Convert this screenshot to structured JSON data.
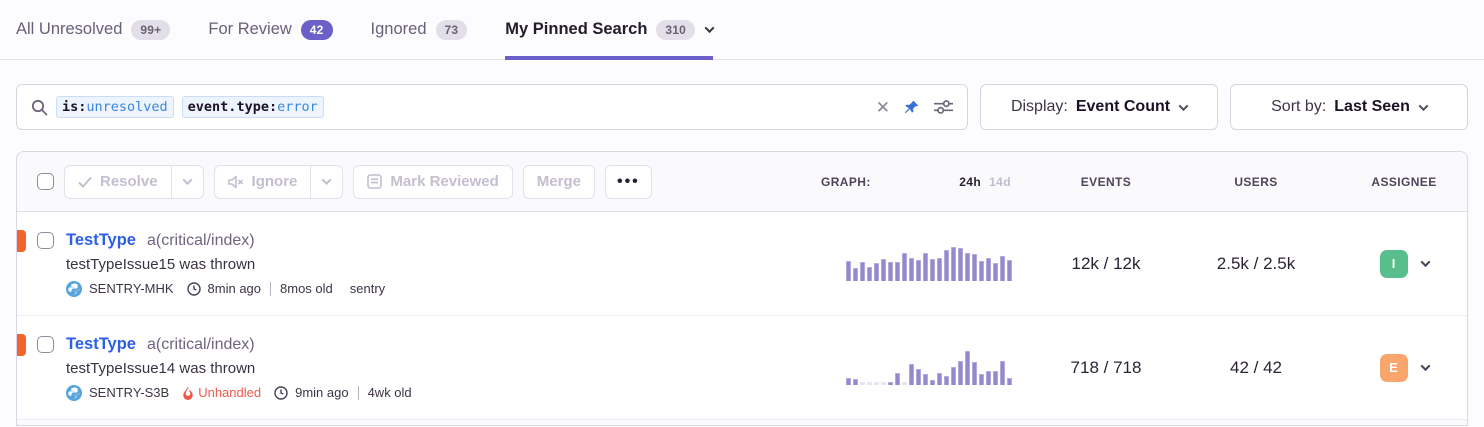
{
  "tabs": [
    {
      "label": "All Unresolved",
      "badge": "99+",
      "badge_style": "gray",
      "active": false
    },
    {
      "label": "For Review",
      "badge": "42",
      "badge_style": "purple",
      "active": false
    },
    {
      "label": "Ignored",
      "badge": "73",
      "badge_style": "gray",
      "active": false
    },
    {
      "label": "My Pinned Search",
      "badge": "310",
      "badge_style": "gray",
      "active": true
    }
  ],
  "search": {
    "tokens": [
      {
        "key": "is:",
        "value": "unresolved"
      },
      {
        "key": "event.type:",
        "value": "error"
      }
    ],
    "clear_label": "✕"
  },
  "display_button": {
    "prefix": "Display:",
    "value": "Event Count"
  },
  "sort_button": {
    "prefix": "Sort by:",
    "value": "Last Seen"
  },
  "toolbar": {
    "resolve": "Resolve",
    "ignore": "Ignore",
    "mark_reviewed": "Mark Reviewed",
    "merge": "Merge",
    "more": "•••"
  },
  "table_header": {
    "graph_label": "GRAPH:",
    "range_24h": "24h",
    "range_14d": "14d",
    "events": "EVENTS",
    "users": "USERS",
    "assignee": "ASSIGNEE"
  },
  "rows": [
    {
      "title": "TestType",
      "culprit": "a(critical/index)",
      "message": "testTypeIssue15 was thrown",
      "short_id": "SENTRY-MHK",
      "time_ago": "8min ago",
      "age": "8mos old",
      "annotation": "sentry",
      "events": "12k / 12k",
      "users": "2.5k / 2.5k",
      "assignee_initial": "I",
      "assignee_color": "#57BE8C",
      "sparkline": [
        0.59,
        0.37,
        0.56,
        0.4,
        0.53,
        0.64,
        0.56,
        0.57,
        0.81,
        0.68,
        0.62,
        0.82,
        0.64,
        0.69,
        0.92,
        1.0,
        0.96,
        0.83,
        0.78,
        0.59,
        0.67,
        0.53,
        0.73,
        0.62
      ]
    },
    {
      "title": "TestType",
      "culprit": "a(critical/index)",
      "message": "testTypeIssue14 was thrown",
      "short_id": "SENTRY-S3B",
      "unhandled": "Unhandled",
      "time_ago": "9min ago",
      "age": "4wk old",
      "events": "718 / 718",
      "users": "42 / 42",
      "assignee_initial": "E",
      "assignee_color": "#F9A66D",
      "sparkline": [
        0.22,
        0.18,
        0.03,
        0.03,
        0.03,
        0.03,
        0.1,
        0.36,
        0.03,
        0.62,
        0.46,
        0.32,
        0.16,
        0.36,
        0.26,
        0.52,
        0.72,
        1.0,
        0.68,
        0.32,
        0.42,
        0.42,
        0.72,
        0.22
      ]
    }
  ],
  "colors": {
    "accent_purple": "#6C5FC7",
    "link_blue": "#2C5FE8",
    "level_orange": "#F1642E",
    "spark_purple": "#9389CC",
    "unhandled_red": "#EE5A4B"
  }
}
